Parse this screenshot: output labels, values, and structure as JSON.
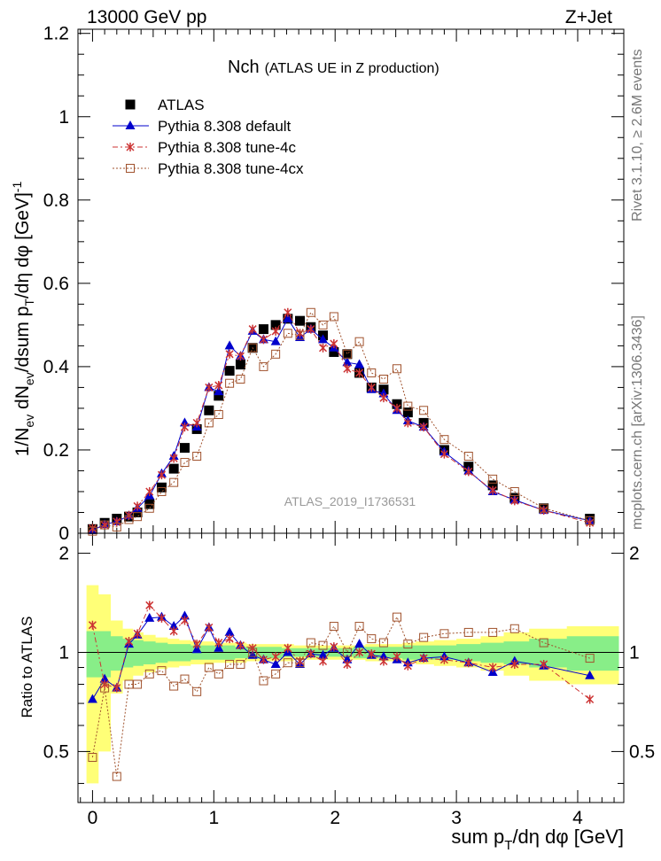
{
  "header": {
    "left": "13000 GeV pp",
    "right": "Z+Jet"
  },
  "side_text": {
    "upper": "Rivet 3.1.10, ≥ 2.6M events",
    "lower": "mcplots.cern.ch [arXiv:1306.3436]"
  },
  "chart_data": {
    "type": "scatter",
    "title_main": "Nch",
    "title_sub": "(ATLAS UE in Z production)",
    "watermark": "ATLAS_2019_I1736531",
    "ylabel_top": "1/N_ev dN_ev/dsum p_T/dη dφ [GeV]^-1",
    "ylabel_bottom": "Ratio to ATLAS",
    "xlabel": "sum p_T/dη dφ [GeV]",
    "xlim": [
      -0.12,
      4.38
    ],
    "ylim_top": [
      0,
      1.21
    ],
    "ylim_bottom": [
      0.35,
      2.3
    ],
    "ratio_scale": "log",
    "x_ticks": [
      "0",
      "1",
      "2",
      "3",
      "4"
    ],
    "y_ticks_top": [
      "0",
      "0.2",
      "0.4",
      "0.6",
      "0.8",
      "1",
      "1.2"
    ],
    "y_ticks_bottom": [
      "0.5",
      "1",
      "2"
    ],
    "legend_position": "top-left",
    "x": [
      0.0,
      0.1,
      0.2,
      0.3,
      0.37,
      0.47,
      0.57,
      0.67,
      0.76,
      0.86,
      0.96,
      1.04,
      1.13,
      1.22,
      1.32,
      1.41,
      1.51,
      1.61,
      1.71,
      1.8,
      1.9,
      1.99,
      2.1,
      2.2,
      2.3,
      2.4,
      2.51,
      2.6,
      2.73,
      2.9,
      3.1,
      3.3,
      3.48,
      3.72,
      4.1
    ],
    "series": [
      {
        "name": "ATLAS",
        "color": "#000000",
        "marker": "square",
        "values": [
          0.01,
          0.025,
          0.035,
          0.04,
          0.05,
          0.07,
          0.11,
          0.155,
          0.205,
          0.25,
          0.295,
          0.33,
          0.39,
          0.405,
          0.445,
          0.49,
          0.5,
          0.515,
          0.51,
          0.495,
          0.475,
          0.435,
          0.43,
          0.385,
          0.35,
          0.345,
          0.31,
          0.29,
          0.265,
          0.2,
          0.16,
          0.115,
          0.085,
          0.06,
          0.035
        ]
      },
      {
        "name": "Pythia 8.308 default",
        "color": "#0000cc",
        "marker": "triangle",
        "values": [
          0.007,
          0.021,
          0.028,
          0.042,
          0.06,
          0.09,
          0.143,
          0.185,
          0.265,
          0.255,
          0.35,
          0.34,
          0.45,
          0.425,
          0.485,
          0.465,
          0.46,
          0.515,
          0.47,
          0.49,
          0.465,
          0.445,
          0.41,
          0.405,
          0.345,
          0.335,
          0.295,
          0.27,
          0.255,
          0.195,
          0.15,
          0.1,
          0.08,
          0.055,
          0.03
        ]
      },
      {
        "name": "Pythia 8.308 tune-4c",
        "color": "#cc3333",
        "marker": "star",
        "values": [
          0.012,
          0.02,
          0.028,
          0.043,
          0.065,
          0.1,
          0.14,
          0.18,
          0.255,
          0.265,
          0.35,
          0.355,
          0.43,
          0.425,
          0.49,
          0.465,
          0.485,
          0.53,
          0.48,
          0.49,
          0.445,
          0.455,
          0.395,
          0.385,
          0.35,
          0.325,
          0.3,
          0.265,
          0.255,
          0.19,
          0.148,
          0.103,
          0.078,
          0.055,
          0.025
        ]
      },
      {
        "name": "Pythia 8.308 tune-4cx",
        "color": "#a0522d",
        "marker": "open-square",
        "values": [
          0.005,
          0.02,
          0.015,
          0.033,
          0.04,
          0.06,
          0.1,
          0.122,
          0.17,
          0.185,
          0.265,
          0.285,
          0.36,
          0.37,
          0.445,
          0.4,
          0.43,
          0.48,
          0.475,
          0.53,
          0.5,
          0.52,
          0.43,
          0.46,
          0.385,
          0.37,
          0.395,
          0.305,
          0.295,
          0.225,
          0.185,
          0.13,
          0.1,
          0.06,
          0.03
        ]
      }
    ],
    "ratio_series": [
      {
        "name": "Pythia 8.308 default",
        "values": [
          0.72,
          0.83,
          0.78,
          1.06,
          1.13,
          1.27,
          1.28,
          1.2,
          1.29,
          1.02,
          1.19,
          1.03,
          1.15,
          1.05,
          0.98,
          0.95,
          0.92,
          1.0,
          0.92,
          0.99,
          0.98,
          1.03,
          0.95,
          1.06,
          0.98,
          0.97,
          0.95,
          0.93,
          0.96,
          0.97,
          0.93,
          0.87,
          0.94,
          0.91,
          0.85
        ]
      },
      {
        "name": "Pythia 8.308 tune-4c",
        "values": [
          1.21,
          0.8,
          0.78,
          1.08,
          1.14,
          1.39,
          1.27,
          1.16,
          1.25,
          1.06,
          1.19,
          1.07,
          1.1,
          1.05,
          1.03,
          0.95,
          0.97,
          1.03,
          0.94,
          0.99,
          0.94,
          1.04,
          0.92,
          1.0,
          0.99,
          0.94,
          0.97,
          0.91,
          0.96,
          0.95,
          0.93,
          0.9,
          0.92,
          0.92,
          0.72
        ]
      },
      {
        "name": "Pythia 8.308 tune-4cx",
        "values": [
          0.48,
          0.78,
          0.42,
          0.8,
          0.8,
          0.86,
          0.88,
          0.79,
          0.83,
          0.76,
          0.9,
          0.86,
          0.92,
          0.92,
          1.0,
          0.82,
          0.86,
          0.93,
          0.93,
          1.07,
          1.05,
          1.2,
          1.0,
          1.2,
          1.1,
          1.07,
          1.28,
          1.06,
          1.11,
          1.14,
          1.15,
          1.15,
          1.18,
          1.07,
          0.96
        ]
      }
    ],
    "band_green_halfwidth": [
      0.16,
      0.16,
      0.12,
      0.1,
      0.09,
      0.08,
      0.07,
      0.06,
      0.06,
      0.05,
      0.05,
      0.05,
      0.05,
      0.04,
      0.04,
      0.04,
      0.04,
      0.03,
      0.03,
      0.03,
      0.03,
      0.03,
      0.03,
      0.04,
      0.04,
      0.04,
      0.04,
      0.05,
      0.05,
      0.05,
      0.06,
      0.07,
      0.08,
      0.1,
      0.12
    ],
    "band_yellow_halfwidth": [
      0.6,
      0.5,
      0.25,
      0.18,
      0.15,
      0.13,
      0.11,
      0.1,
      0.09,
      0.08,
      0.08,
      0.07,
      0.07,
      0.07,
      0.06,
      0.06,
      0.06,
      0.06,
      0.05,
      0.05,
      0.05,
      0.05,
      0.05,
      0.05,
      0.06,
      0.06,
      0.06,
      0.07,
      0.08,
      0.09,
      0.1,
      0.12,
      0.15,
      0.18,
      0.2
    ]
  }
}
